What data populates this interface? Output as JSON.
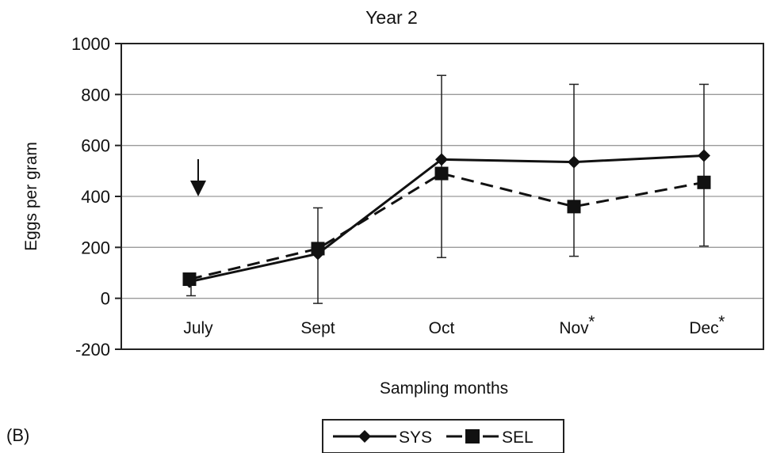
{
  "chart_data": {
    "type": "line",
    "title": "Year 2",
    "xlabel": "Sampling months",
    "ylabel": "Eggs per gram",
    "panel_label": "(B)",
    "categories": [
      "July",
      "Sept",
      "Oct",
      "Nov",
      "Dec"
    ],
    "category_markers": [
      "",
      "",
      "",
      "*",
      "*"
    ],
    "ylim": [
      -200,
      1000
    ],
    "yticks": [
      -200,
      0,
      200,
      400,
      600,
      800,
      1000
    ],
    "grid": true,
    "legend_position": "bottom-center",
    "annotation": "downward arrow above July",
    "series": [
      {
        "name": "SYS",
        "marker": "diamond",
        "line_style": "solid",
        "values": [
          65,
          175,
          545,
          535,
          560
        ],
        "error_low": [
          10,
          -20,
          160,
          165,
          205
        ],
        "error_high": [
          85,
          355,
          875,
          840,
          840
        ]
      },
      {
        "name": "SEL",
        "marker": "square",
        "line_style": "dashed",
        "values": [
          75,
          195,
          490,
          360,
          455
        ]
      }
    ]
  }
}
